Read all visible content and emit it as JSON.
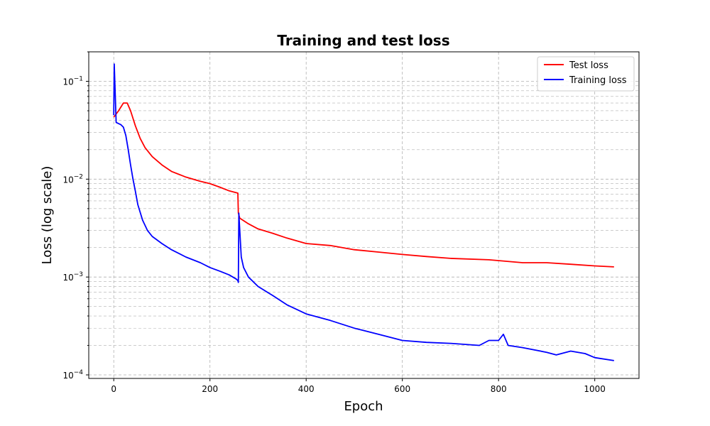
{
  "chart_data": {
    "type": "line",
    "title": "Training and test loss",
    "xlabel": "Epoch",
    "ylabel": "Loss (log scale)",
    "yscale": "log",
    "xlim": [
      -52,
      1092
    ],
    "ylim": [
      9.2e-05,
      0.2
    ],
    "xticks": [
      0,
      200,
      400,
      600,
      800,
      1000
    ],
    "yticks": [
      0.0001,
      0.001,
      0.01,
      0.1
    ],
    "ytick_labels": [
      "10",
      "10",
      "10",
      "10"
    ],
    "ytick_exponents": [
      "−4",
      "−3",
      "−2",
      "−1"
    ],
    "grid": true,
    "legend": "top-right",
    "series": [
      {
        "name": "Test loss",
        "color": "#ff0000",
        "x": [
          0,
          10,
          20,
          28,
          35,
          45,
          55,
          65,
          80,
          100,
          120,
          150,
          180,
          200,
          220,
          240,
          258,
          259,
          262,
          280,
          300,
          330,
          360,
          400,
          450,
          500,
          550,
          600,
          650,
          700,
          780,
          850,
          900,
          950,
          1000,
          1040
        ],
        "y": [
          0.043,
          0.05,
          0.06,
          0.06,
          0.05,
          0.035,
          0.026,
          0.021,
          0.017,
          0.014,
          0.012,
          0.0105,
          0.0095,
          0.009,
          0.0083,
          0.0076,
          0.0072,
          0.0045,
          0.004,
          0.0035,
          0.0031,
          0.0028,
          0.0025,
          0.0022,
          0.0021,
          0.0019,
          0.0018,
          0.0017,
          0.00162,
          0.00155,
          0.0015,
          0.0014,
          0.0014,
          0.00135,
          0.0013,
          0.00127
        ]
      },
      {
        "name": "Training loss",
        "color": "#0000ff",
        "x": [
          0,
          1,
          5,
          15,
          20,
          25,
          30,
          35,
          40,
          45,
          50,
          60,
          70,
          80,
          100,
          120,
          150,
          180,
          200,
          220,
          240,
          255,
          258,
          259,
          260,
          262,
          265,
          270,
          280,
          300,
          330,
          360,
          400,
          450,
          500,
          550,
          600,
          650,
          700,
          760,
          780,
          800,
          810,
          820,
          850,
          900,
          920,
          950,
          980,
          1000,
          1040
        ],
        "y": [
          0.045,
          0.15,
          0.038,
          0.036,
          0.034,
          0.028,
          0.02,
          0.014,
          0.01,
          0.0075,
          0.0055,
          0.0038,
          0.003,
          0.0026,
          0.0022,
          0.0019,
          0.0016,
          0.0014,
          0.00125,
          0.00115,
          0.00105,
          0.00095,
          0.00092,
          0.00088,
          0.0045,
          0.003,
          0.0016,
          0.00125,
          0.001,
          0.0008,
          0.00065,
          0.00052,
          0.00042,
          0.00036,
          0.0003,
          0.00026,
          0.000225,
          0.000215,
          0.00021,
          0.0002,
          0.000225,
          0.000225,
          0.00026,
          0.0002,
          0.00019,
          0.00017,
          0.00016,
          0.000175,
          0.000165,
          0.00015,
          0.00014
        ]
      }
    ]
  }
}
